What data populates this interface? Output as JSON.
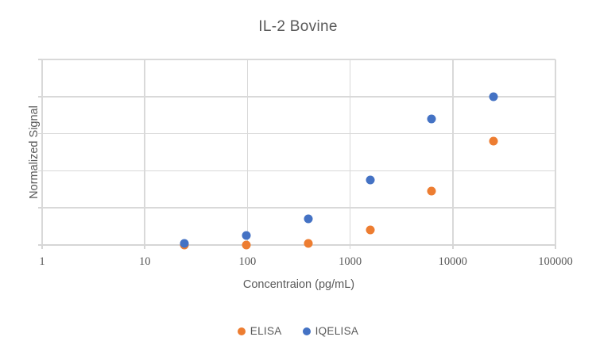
{
  "title": "IL-2 Bovine",
  "axes": {
    "x": {
      "label": "Concentraion (pg/mL)"
    },
    "y": {
      "label": "Normalized Signal"
    }
  },
  "legend": {
    "items": [
      {
        "label": "ELISA",
        "color": "#ED7D31"
      },
      {
        "label": "IQELISA",
        "color": "#4472C4"
      }
    ]
  },
  "chart_data": {
    "type": "scatter",
    "title": "IL-2 Bovine",
    "xlabel": "Concentraion (pg/mL)",
    "ylabel": "Normalized Signal",
    "x_scale": "log",
    "xlim": [
      1,
      100000
    ],
    "ylim": [
      0,
      1
    ],
    "x_ticks": [
      1,
      10,
      100,
      1000,
      10000,
      100000
    ],
    "y_gridline_step": 0.2,
    "y_tick_labels_shown": false,
    "grid": true,
    "legend_position": "bottom-center",
    "colors": {
      "text": "#595959",
      "gridline": "#D9D9D9"
    },
    "series": [
      {
        "name": "ELISA",
        "color": "#ED7D31",
        "points": [
          [
            24.4,
            0.0
          ],
          [
            97.7,
            0.0
          ],
          [
            390.6,
            0.01
          ],
          [
            1562.5,
            0.08
          ],
          [
            6250,
            0.29
          ],
          [
            25000,
            0.56
          ]
        ]
      },
      {
        "name": "IQELISA",
        "color": "#4472C4",
        "points": [
          [
            24.4,
            0.01
          ],
          [
            97.7,
            0.05
          ],
          [
            390.6,
            0.14
          ],
          [
            1562.5,
            0.35
          ],
          [
            6250,
            0.68
          ],
          [
            25000,
            0.8
          ]
        ]
      }
    ]
  }
}
